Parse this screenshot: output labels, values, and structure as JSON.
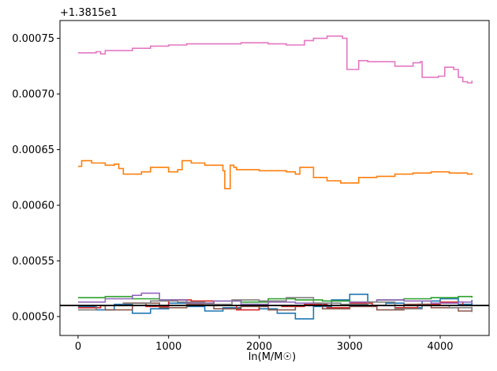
{
  "chart_data": {
    "type": "line",
    "step": true,
    "title": "",
    "xlabel": "ln(M/M☉)",
    "ylabel": "",
    "offset_text": "+1.3815e1",
    "xlim": [
      -200,
      4540
    ],
    "ylim": [
      0.000483,
      0.000766
    ],
    "xticks": [
      0,
      1000,
      2000,
      3000,
      4000
    ],
    "xtick_labels": [
      "0",
      "1000",
      "2000",
      "3000",
      "4000"
    ],
    "yticks": [
      0.0005,
      0.00055,
      0.0006,
      0.00065,
      0.0007,
      0.00075
    ],
    "ytick_labels": [
      "0.00050",
      "0.00055",
      "0.00060",
      "0.00065",
      "0.00070",
      "0.00075"
    ],
    "hline": {
      "y": 0.00051,
      "color": "#000000"
    },
    "series": [
      {
        "name": "series-pink",
        "color": "#e377c2",
        "x": [
          0,
          200,
          250,
          300,
          600,
          800,
          1000,
          1200,
          1500,
          1800,
          2100,
          2300,
          2500,
          2600,
          2750,
          2920,
          2970,
          3100,
          3200,
          3500,
          3700,
          3780,
          3800,
          3980,
          4050,
          4150,
          4200,
          4250,
          4300,
          4350
        ],
        "values": [
          0.000737,
          0.000738,
          0.000736,
          0.000739,
          0.000741,
          0.000743,
          0.000744,
          0.000745,
          0.000745,
          0.000746,
          0.000745,
          0.000744,
          0.000748,
          0.00075,
          0.000752,
          0.00075,
          0.000722,
          0.00073,
          0.000729,
          0.000725,
          0.000728,
          0.000729,
          0.000715,
          0.000716,
          0.000724,
          0.000722,
          0.000715,
          0.000711,
          0.00071,
          0.000712
        ]
      },
      {
        "name": "series-orange",
        "color": "#ff7f0e",
        "x": [
          0,
          40,
          150,
          300,
          400,
          450,
          500,
          700,
          800,
          1000,
          1100,
          1150,
          1250,
          1400,
          1600,
          1620,
          1680,
          1720,
          1750,
          2000,
          2300,
          2400,
          2450,
          2600,
          2750,
          2900,
          3100,
          3300,
          3500,
          3700,
          3900,
          4100,
          4300,
          4350
        ],
        "values": [
          0.000635,
          0.00064,
          0.000638,
          0.000636,
          0.000637,
          0.000633,
          0.000628,
          0.00063,
          0.000634,
          0.00063,
          0.000632,
          0.00064,
          0.000638,
          0.000636,
          0.000631,
          0.000615,
          0.000636,
          0.000634,
          0.000632,
          0.000631,
          0.00063,
          0.000628,
          0.000634,
          0.000625,
          0.000622,
          0.00062,
          0.000625,
          0.000626,
          0.000628,
          0.000629,
          0.00063,
          0.000629,
          0.000628,
          0.000629
        ]
      },
      {
        "name": "series-blue",
        "color": "#1f77b4",
        "x": [
          0,
          200,
          400,
          600,
          800,
          1000,
          1200,
          1400,
          1600,
          1800,
          2000,
          2200,
          2400,
          2600,
          2800,
          3000,
          3200,
          3400,
          3600,
          3800,
          4000,
          4200,
          4350
        ],
        "values": [
          0.000509,
          0.000506,
          0.000511,
          0.000503,
          0.000507,
          0.000512,
          0.000509,
          0.000505,
          0.000508,
          0.000511,
          0.000507,
          0.000503,
          0.000498,
          0.000509,
          0.000515,
          0.00052,
          0.00051,
          0.000512,
          0.000508,
          0.000514,
          0.000516,
          0.000511,
          0.000515
        ]
      },
      {
        "name": "series-green",
        "color": "#2ca02c",
        "x": [
          0,
          300,
          600,
          900,
          1200,
          1500,
          1800,
          2100,
          2400,
          2700,
          3000,
          3300,
          3600,
          3900,
          4200,
          4350
        ],
        "values": [
          0.000517,
          0.000518,
          0.000516,
          0.000515,
          0.000512,
          0.000514,
          0.000513,
          0.000516,
          0.000515,
          0.000514,
          0.000513,
          0.000515,
          0.000516,
          0.000517,
          0.000518,
          0.000517
        ]
      },
      {
        "name": "series-red",
        "color": "#d62728",
        "x": [
          0,
          250,
          500,
          750,
          1000,
          1250,
          1500,
          1750,
          2000,
          2250,
          2500,
          2750,
          3000,
          3250,
          3500,
          3750,
          4000,
          4250,
          4350
        ],
        "values": [
          0.000508,
          0.00051,
          0.000512,
          0.000509,
          0.000515,
          0.000514,
          0.00051,
          0.000506,
          0.00051,
          0.000509,
          0.000511,
          0.000508,
          0.000512,
          0.00051,
          0.000508,
          0.000511,
          0.000513,
          0.00051,
          0.000509
        ]
      },
      {
        "name": "series-purple",
        "color": "#9467bd",
        "x": [
          0,
          300,
          600,
          700,
          900,
          1200,
          1500,
          1800,
          2100,
          2400,
          2700,
          3000,
          3300,
          3600,
          3900,
          4200,
          4350
        ],
        "values": [
          0.000513,
          0.000516,
          0.000519,
          0.000521,
          0.000515,
          0.000512,
          0.000514,
          0.000511,
          0.000513,
          0.000512,
          0.00051,
          0.000513,
          0.000515,
          0.000514,
          0.000512,
          0.000513,
          0.000512
        ]
      },
      {
        "name": "series-brown",
        "color": "#8c564b",
        "x": [
          0,
          300,
          600,
          900,
          1200,
          1500,
          1800,
          2100,
          2400,
          2700,
          3000,
          3300,
          3600,
          3900,
          4200,
          4350
        ],
        "values": [
          0.00051,
          0.000506,
          0.000512,
          0.000508,
          0.000511,
          0.000507,
          0.000509,
          0.000506,
          0.00051,
          0.000507,
          0.000509,
          0.000506,
          0.000511,
          0.000508,
          0.000505,
          0.000507
        ]
      },
      {
        "name": "series-gray",
        "color": "#7f7f7f",
        "x": [
          0,
          200,
          500,
          800,
          1100,
          1400,
          1700,
          2000,
          2300,
          2600,
          2900,
          3200,
          3500,
          3800,
          4100,
          4350
        ],
        "values": [
          0.000506,
          0.00051,
          0.000512,
          0.000514,
          0.000513,
          0.000511,
          0.000515,
          0.000514,
          0.000517,
          0.000512,
          0.000511,
          0.000513,
          0.000507,
          0.00051,
          0.000508,
          0.000504
        ]
      }
    ]
  }
}
